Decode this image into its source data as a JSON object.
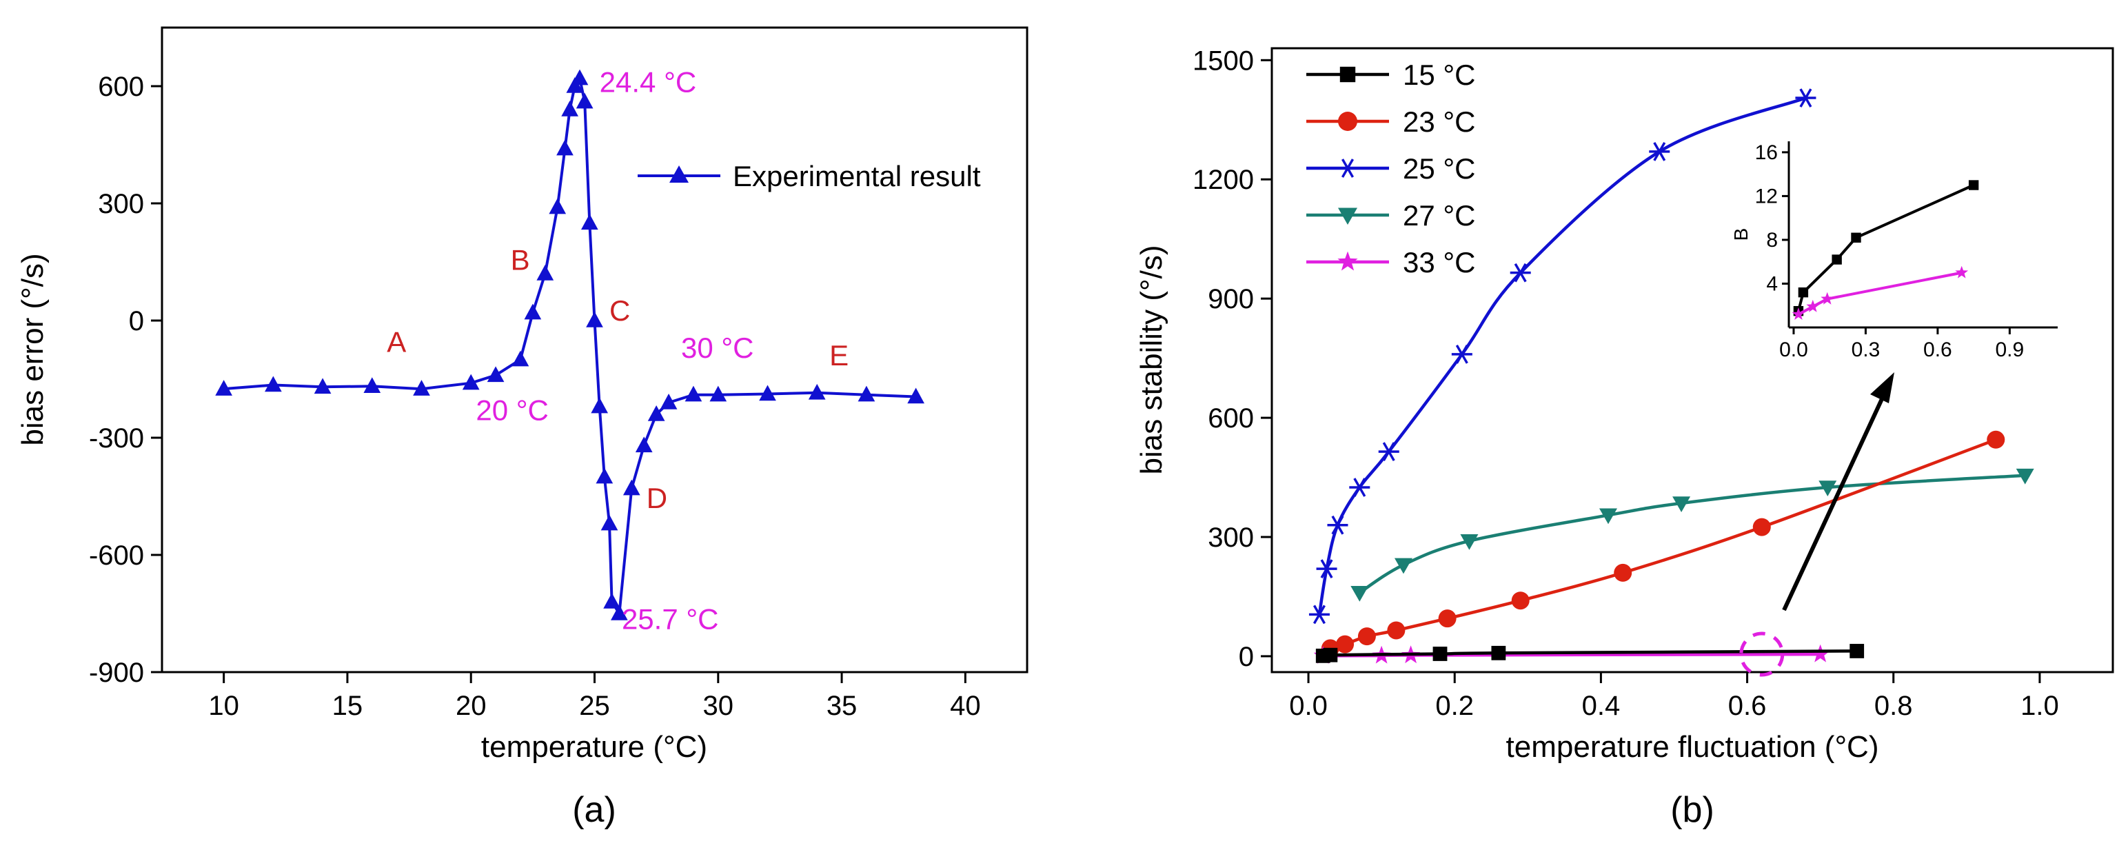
{
  "colors": {
    "blue": "#1010d0",
    "black": "#000000",
    "red": "#dd2211",
    "teal": "#1a7f73",
    "magenta": "#e020e0",
    "anno_red": "#cc2222"
  },
  "chart_data": [
    {
      "type": "line",
      "panel_label": "(a)",
      "title": "",
      "xlabel": "temperature (°C)",
      "ylabel": "bias error (°/s)",
      "xlim": [
        7.5,
        42.5
      ],
      "ylim": [
        -900,
        750
      ],
      "xticks": [
        10,
        15,
        20,
        25,
        30,
        35,
        40
      ],
      "yticks": [
        -900,
        -600,
        -300,
        0,
        300,
        600
      ],
      "legend": {
        "position": "top-right",
        "entries": [
          "Experimental result"
        ]
      },
      "series": [
        {
          "name": "Experimental result",
          "color": "#1010d0",
          "marker": "triangle",
          "x": [
            10,
            12,
            14,
            16,
            18,
            20,
            21,
            22,
            22.5,
            23,
            23.5,
            23.8,
            24,
            24.2,
            24.4,
            24.6,
            24.8,
            25,
            25.2,
            25.4,
            25.6,
            25.7,
            26,
            26.5,
            27,
            27.5,
            28,
            29,
            30,
            32,
            34,
            36,
            38
          ],
          "y": [
            -175,
            -165,
            -170,
            -168,
            -175,
            -160,
            -140,
            -100,
            20,
            120,
            290,
            440,
            540,
            600,
            620,
            560,
            250,
            0,
            -220,
            -400,
            -520,
            -720,
            -750,
            -430,
            -320,
            -240,
            -210,
            -190,
            -190,
            -188,
            -185,
            -190,
            -195
          ]
        }
      ],
      "annotations": [
        {
          "text": "A",
          "x": 16.6,
          "y": -80,
          "color": "#cc2222"
        },
        {
          "text": "B",
          "x": 21.6,
          "y": 130,
          "color": "#cc2222"
        },
        {
          "text": "C",
          "x": 25.6,
          "y": 0,
          "color": "#cc2222"
        },
        {
          "text": "D",
          "x": 27.1,
          "y": -480,
          "color": "#cc2222"
        },
        {
          "text": "E",
          "x": 34.5,
          "y": -115,
          "color": "#cc2222"
        },
        {
          "text": "24.4 °C",
          "x": 25.2,
          "y": 585,
          "color": "#e020e0"
        },
        {
          "text": "20 °C",
          "x": 20.2,
          "y": -255,
          "color": "#e020e0"
        },
        {
          "text": "30 °C",
          "x": 28.5,
          "y": -95,
          "color": "#e020e0"
        },
        {
          "text": "25.7 °C",
          "x": 26.1,
          "y": -790,
          "color": "#e020e0"
        }
      ]
    },
    {
      "type": "line",
      "panel_label": "(b)",
      "title": "",
      "xlabel": "temperature fluctuation (°C)",
      "ylabel": "bias stability (°/s)",
      "xlim": [
        -0.05,
        1.1
      ],
      "ylim": [
        -40,
        1530
      ],
      "xticks": [
        0.0,
        0.2,
        0.4,
        0.6,
        0.8,
        1.0
      ],
      "yticks": [
        0,
        300,
        600,
        900,
        1200,
        1500
      ],
      "legend": {
        "position": "top-left",
        "entries": [
          "15 °C",
          "23 °C",
          "25 °C",
          "27 °C",
          "33 °C"
        ]
      },
      "series": [
        {
          "name": "15 °C",
          "color": "#000000",
          "marker": "square",
          "x": [
            0.02,
            0.03,
            0.18,
            0.26,
            0.75
          ],
          "y": [
            1,
            3,
            6,
            8,
            13
          ]
        },
        {
          "name": "23 °C",
          "color": "#dd2211",
          "marker": "circle",
          "x": [
            0.03,
            0.05,
            0.08,
            0.12,
            0.19,
            0.29,
            0.43,
            0.62,
            0.94
          ],
          "y": [
            20,
            30,
            50,
            65,
            95,
            140,
            210,
            325,
            545
          ]
        },
        {
          "name": "25 °C",
          "color": "#1010d0",
          "marker": "star6",
          "x": [
            0.015,
            0.025,
            0.04,
            0.07,
            0.11,
            0.21,
            0.29,
            0.48,
            0.68
          ],
          "y": [
            105,
            220,
            330,
            425,
            515,
            760,
            965,
            1270,
            1405
          ]
        },
        {
          "name": "27 °C",
          "color": "#1a7f73",
          "marker": "triangle-down",
          "x": [
            0.07,
            0.13,
            0.22,
            0.41,
            0.51,
            0.71,
            0.98
          ],
          "y": [
            160,
            230,
            290,
            355,
            385,
            425,
            455
          ]
        },
        {
          "name": "33 °C",
          "color": "#e020e0",
          "marker": "star5",
          "x": [
            0.02,
            0.1,
            0.14,
            0.7
          ],
          "y": [
            1,
            1.5,
            2.5,
            5
          ]
        }
      ],
      "inset": {
        "ylabel": "B",
        "xlim": [
          -0.02,
          1.1
        ],
        "ylim": [
          0,
          17
        ],
        "xticks": [
          0.0,
          0.3,
          0.6,
          0.9
        ],
        "yticks": [
          4,
          8,
          12,
          16
        ],
        "series": [
          {
            "name": "15 °C",
            "color": "#000000",
            "marker": "square",
            "x": [
              0.02,
              0.04,
              0.18,
              0.26,
              0.75
            ],
            "y": [
              1.5,
              3.2,
              6.2,
              8.2,
              13
            ]
          },
          {
            "name": "33 °C",
            "color": "#e020e0",
            "marker": "star5",
            "x": [
              0.02,
              0.08,
              0.14,
              0.7
            ],
            "y": [
              1.2,
              1.9,
              2.6,
              5
            ]
          }
        ]
      }
    }
  ]
}
